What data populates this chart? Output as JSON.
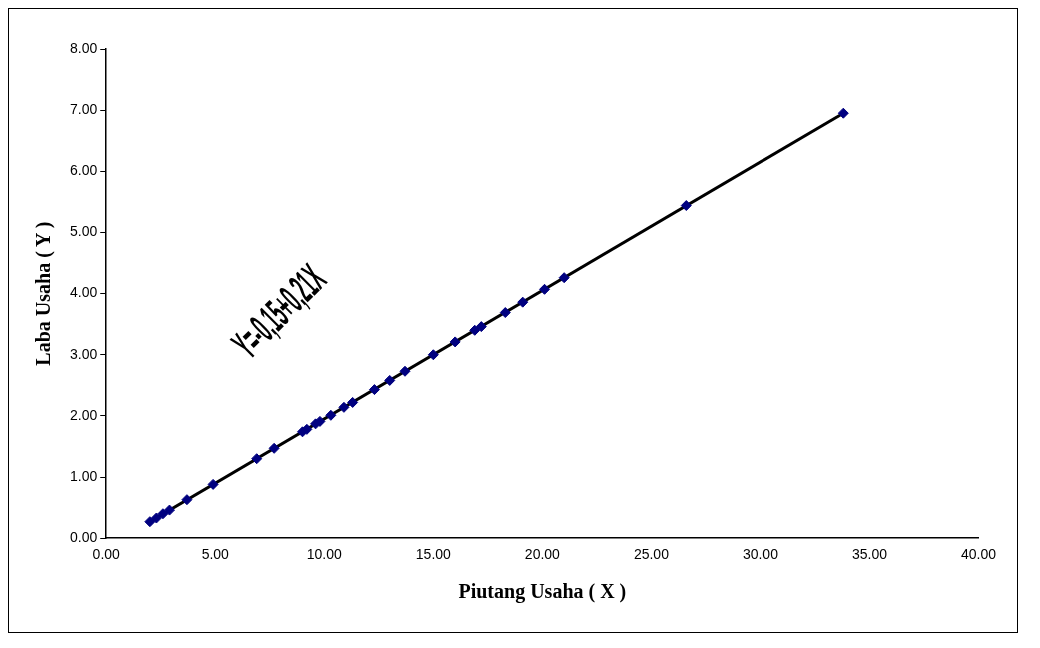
{
  "chart_data": {
    "type": "scatter",
    "xlabel": "Piutang Usaha ( X )",
    "ylabel": "Laba Usaha ( Y )",
    "annotations": [
      "Y=-0,15+0,21X"
    ],
    "xlim": [
      0,
      40
    ],
    "ylim": [
      0,
      8
    ],
    "xticks": [
      {
        "value": 0,
        "label": "0.00"
      },
      {
        "value": 5,
        "label": "5.00"
      },
      {
        "value": 10,
        "label": "10.00"
      },
      {
        "value": 15,
        "label": "15.00"
      },
      {
        "value": 20,
        "label": "20.00"
      },
      {
        "value": 25,
        "label": "25.00"
      },
      {
        "value": 30,
        "label": "30.00"
      },
      {
        "value": 35,
        "label": "35.00"
      },
      {
        "value": 40,
        "label": "40.00"
      }
    ],
    "yticks": [
      {
        "value": 0,
        "label": "0.00"
      },
      {
        "value": 1,
        "label": "1.00"
      },
      {
        "value": 2,
        "label": "2.00"
      },
      {
        "value": 3,
        "label": "3.00"
      },
      {
        "value": 4,
        "label": "4.00"
      },
      {
        "value": 5,
        "label": "5.00"
      },
      {
        "value": 6,
        "label": "6.00"
      },
      {
        "value": 7,
        "label": "7.00"
      },
      {
        "value": 8,
        "label": "8.00"
      }
    ],
    "grid": false,
    "legend": false,
    "marker": "diamond",
    "series": [
      {
        "type": "scatter",
        "color": "#000080",
        "x": [
          2.0,
          2.3,
          2.6,
          2.9,
          3.7,
          4.9,
          6.9,
          7.7,
          9.0,
          9.2,
          9.6,
          9.8,
          10.3,
          10.9,
          11.3,
          12.3,
          13.0,
          13.7,
          15.0,
          16.0,
          16.9,
          17.2,
          18.3,
          19.1,
          20.1,
          21.0,
          26.6,
          33.8
        ],
        "values": [
          0.27,
          0.33,
          0.4,
          0.46,
          0.63,
          0.88,
          1.3,
          1.47,
          1.74,
          1.78,
          1.87,
          1.91,
          2.01,
          2.14,
          2.22,
          2.43,
          2.58,
          2.73,
          3.0,
          3.21,
          3.4,
          3.46,
          3.69,
          3.86,
          4.07,
          4.26,
          5.44,
          6.95
        ]
      },
      {
        "type": "line",
        "color": "#000000",
        "line_style": "solid",
        "marker": "none",
        "x": [
          2.0,
          33.8
        ],
        "values": [
          0.27,
          6.95
        ]
      }
    ]
  }
}
